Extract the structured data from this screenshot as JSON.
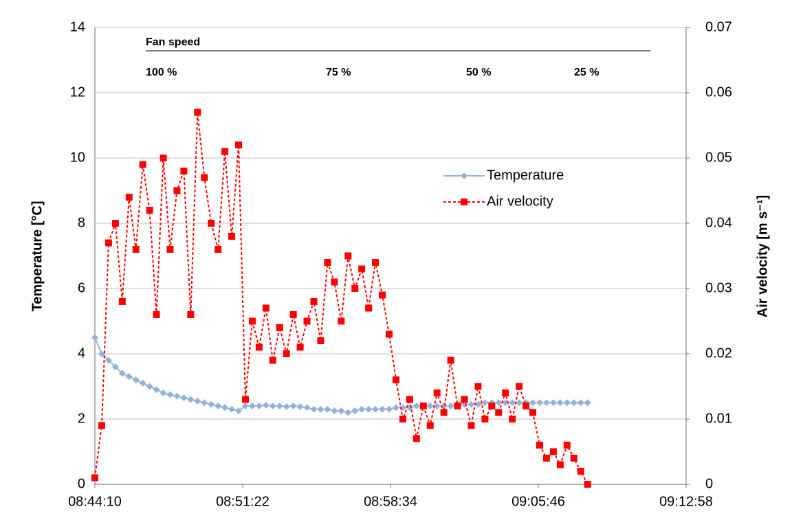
{
  "chart_data": {
    "type": "line",
    "y_label": "Temperature [°C]",
    "y2_label": "Air velocity [m s⁻¹]",
    "annotation": {
      "title": "Fan speed",
      "labels": [
        "100 %",
        "75 %",
        "50 %",
        "25 %"
      ]
    },
    "x": [
      "08:44:10",
      "08:44:30",
      "08:44:50",
      "08:45:10",
      "08:45:30",
      "08:45:50",
      "08:46:10",
      "08:46:30",
      "08:46:50",
      "08:47:10",
      "08:47:30",
      "08:47:50",
      "08:48:10",
      "08:48:30",
      "08:48:50",
      "08:49:10",
      "08:49:30",
      "08:49:50",
      "08:50:10",
      "08:50:30",
      "08:50:50",
      "08:51:10",
      "08:51:30",
      "08:51:50",
      "08:52:10",
      "08:52:30",
      "08:52:50",
      "08:53:10",
      "08:53:30",
      "08:53:50",
      "08:54:10",
      "08:54:30",
      "08:54:50",
      "08:55:10",
      "08:55:30",
      "08:55:50",
      "08:56:10",
      "08:56:30",
      "08:56:50",
      "08:57:10",
      "08:57:30",
      "08:57:50",
      "08:58:10",
      "08:58:30",
      "08:58:50",
      "08:59:10",
      "08:59:30",
      "08:59:50",
      "09:00:10",
      "09:00:30",
      "09:00:50",
      "09:01:10",
      "09:01:30",
      "09:01:50",
      "09:02:10",
      "09:02:30",
      "09:02:50",
      "09:03:10",
      "09:03:30",
      "09:03:50",
      "09:04:10",
      "09:04:30",
      "09:04:50",
      "09:05:10",
      "09:05:30",
      "09:05:50",
      "09:06:10",
      "09:06:30",
      "09:06:50",
      "09:07:10",
      "09:07:30",
      "09:07:50",
      "09:08:10"
    ],
    "xlim": [
      "08:44:10",
      "09:12:58"
    ],
    "xticks": [
      "08:44:10",
      "08:51:22",
      "08:58:34",
      "09:05:46",
      "09:12:58"
    ],
    "ylim": [
      0,
      14
    ],
    "yticks": [
      0,
      2,
      4,
      6,
      8,
      10,
      12,
      14
    ],
    "y2lim": [
      0,
      0.07
    ],
    "y2ticks": [
      0,
      0.01,
      0.02,
      0.03,
      0.04,
      0.05,
      0.06,
      0.07
    ],
    "grid": true,
    "series": [
      {
        "name": "Temperature",
        "color": "#95b3d7",
        "values": [
          4.5,
          4.0,
          3.8,
          3.6,
          3.4,
          3.3,
          3.2,
          3.1,
          3.0,
          2.9,
          2.8,
          2.75,
          2.7,
          2.65,
          2.6,
          2.55,
          2.5,
          2.45,
          2.4,
          2.35,
          2.3,
          2.25,
          2.4,
          2.4,
          2.4,
          2.42,
          2.4,
          2.4,
          2.38,
          2.4,
          2.38,
          2.35,
          2.3,
          2.3,
          2.3,
          2.25,
          2.25,
          2.2,
          2.25,
          2.3,
          2.3,
          2.3,
          2.3,
          2.3,
          2.35,
          2.35,
          2.35,
          2.4,
          2.4,
          2.4,
          2.4,
          2.4,
          2.4,
          2.45,
          2.45,
          2.45,
          2.45,
          2.5,
          2.5,
          2.5,
          2.5,
          2.5,
          2.5,
          2.5,
          2.5,
          2.5,
          2.5,
          2.5,
          2.5,
          2.5,
          2.5,
          2.5,
          2.5
        ]
      },
      {
        "name": "Air velocity",
        "color": "#ff0000",
        "axis": "y2",
        "values": [
          0.001,
          0.009,
          0.037,
          0.04,
          0.028,
          0.044,
          0.036,
          0.049,
          0.042,
          0.026,
          0.05,
          0.036,
          0.045,
          0.048,
          0.026,
          0.057,
          0.047,
          0.04,
          0.036,
          0.051,
          0.038,
          0.052,
          0.013,
          0.025,
          0.021,
          0.027,
          0.019,
          0.024,
          0.02,
          0.026,
          0.021,
          0.025,
          0.028,
          0.022,
          0.034,
          0.031,
          0.025,
          0.035,
          0.03,
          0.033,
          0.027,
          0.034,
          0.029,
          0.023,
          0.016,
          0.01,
          0.013,
          0.007,
          0.012,
          0.009,
          0.014,
          0.011,
          0.019,
          0.012,
          0.013,
          0.009,
          0.015,
          0.01,
          0.012,
          0.011,
          0.014,
          0.01,
          0.015,
          0.012,
          0.011,
          0.006,
          0.004,
          0.005,
          0.003,
          0.006,
          0.004,
          0.002,
          0.0
        ]
      }
    ]
  }
}
